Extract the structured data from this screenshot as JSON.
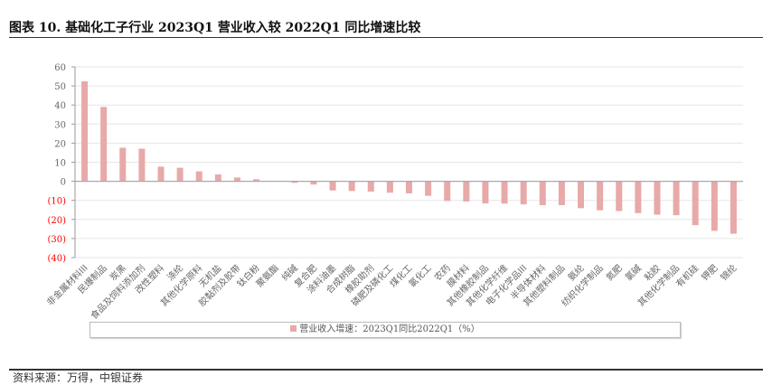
{
  "header": {
    "title": "图表 10. 基础化工子行业 2023Q1 营业收入较 2022Q1 同比增速比较"
  },
  "footer": {
    "source": "资料来源：万得，中银证券"
  },
  "chart_data": {
    "type": "bar",
    "title": "图表 10. 基础化工子行业 2023Q1 营业收入较 2022Q1 同比增速比较",
    "xlabel": "",
    "ylabel": "",
    "ylim": [
      -40,
      60
    ],
    "yticks": [
      60,
      50,
      40,
      30,
      20,
      10,
      0,
      -10,
      -20,
      -30,
      -40
    ],
    "ytick_labels": [
      "60",
      "50",
      "40",
      "30",
      "20",
      "10",
      "0",
      "(10)",
      "(20)",
      "(30)",
      "(40)"
    ],
    "grid": true,
    "legend_position": "bottom",
    "colors": {
      "bar": "#e8a9a9",
      "negative_tick": "#ff0000",
      "tick": "#666666",
      "grid": "#e6e6e6"
    },
    "categories": [
      "非金属材料III",
      "民爆制品",
      "炭黑",
      "食品及饲料添加剂",
      "改性塑料",
      "涤纶",
      "其他化学原料",
      "无机盐",
      "胶黏剂及胶带",
      "钛白粉",
      "聚氨酯",
      "纯碱",
      "复合肥",
      "涂料油墨",
      "合成树脂",
      "橡胶助剂",
      "磷肥及磷化工",
      "煤化工",
      "氯化工",
      "农药",
      "膜材料",
      "其他橡胶制品",
      "其他化学纤维",
      "电子化学品III",
      "半导体材料",
      "其他塑料制品",
      "氨纶",
      "纺织化学制品",
      "氮肥",
      "氯碱",
      "粘胶",
      "其他化学制品",
      "有机硅",
      "钾肥",
      "锦纶"
    ],
    "series": [
      {
        "name": "营业收入增速：2023Q1同比2022Q1（%）",
        "values": [
          52.4,
          39.0,
          17.6,
          17.1,
          7.7,
          7.1,
          5.2,
          3.6,
          2.0,
          1.1,
          0.2,
          -0.8,
          -1.7,
          -4.8,
          -5.1,
          -5.4,
          -6.0,
          -6.3,
          -7.6,
          -10.3,
          -10.6,
          -11.6,
          -11.7,
          -12.1,
          -12.5,
          -12.5,
          -14.1,
          -15.2,
          -15.6,
          -16.7,
          -17.5,
          -17.8,
          -23.0,
          -26.0,
          -27.5
        ]
      }
    ]
  }
}
